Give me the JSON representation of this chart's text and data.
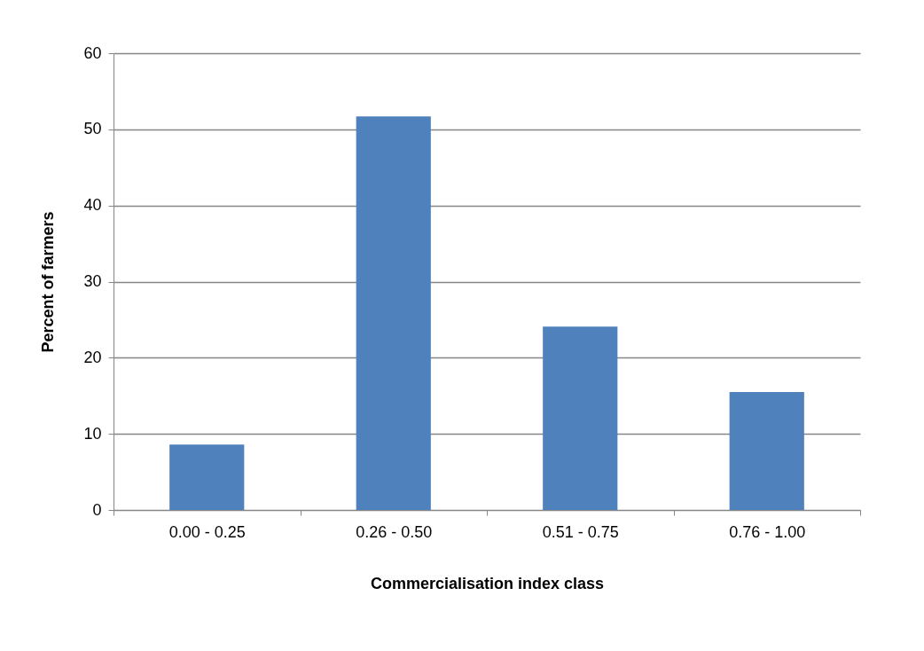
{
  "chart_data": {
    "type": "bar",
    "xlabel": "Commercialisation index class",
    "ylabel": "Percent  of farmers",
    "categories": [
      "0.00 - 0.25",
      "0.26 - 0.50",
      "0.51 - 0.75",
      "0.76 - 1.00"
    ],
    "values": [
      8.6,
      51.7,
      24.1,
      15.5
    ],
    "color": "#4f81bd",
    "ylim": [
      0,
      60
    ],
    "yticks": [
      0,
      10,
      20,
      30,
      40,
      50,
      60
    ],
    "grid": "y"
  }
}
